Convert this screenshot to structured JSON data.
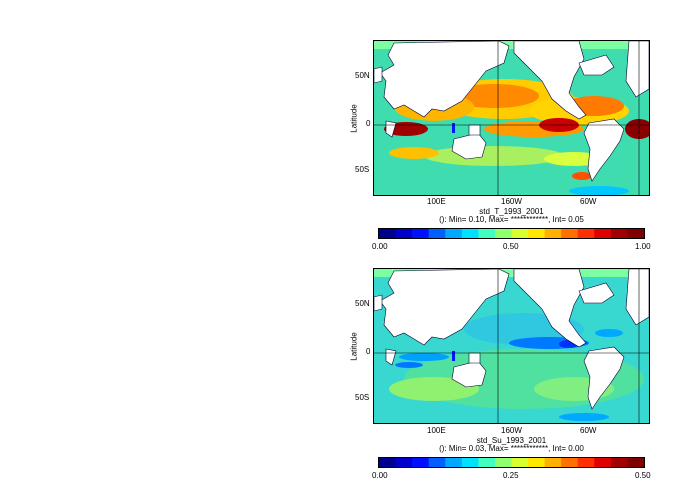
{
  "panel_top": {
    "title": "std_T_1993_2001",
    "stats": "(): Min= 0.10, Max= ************, Int= 0.05",
    "ylabel": "Latitude",
    "lat_ticks": [
      "50N",
      "0",
      "50S"
    ],
    "lon_ticks": [
      "100E",
      "160W",
      "60W"
    ],
    "colorbar_ticks": [
      "0.00",
      "0.50",
      "1.00"
    ],
    "colorbar_range": [
      0.0,
      1.0
    ]
  },
  "panel_bottom": {
    "title": "std_Su_1993_2001",
    "stats": "(): Min= 0.03, Max= ************, Int= 0.00",
    "ylabel": "Latitude",
    "lat_ticks": [
      "50N",
      "0",
      "50S"
    ],
    "lon_ticks": [
      "100E",
      "160W",
      "60W"
    ],
    "colorbar_ticks": [
      "0.00",
      "0.25",
      "0.50"
    ],
    "colorbar_range": [
      0.0,
      0.5
    ]
  },
  "colors": {
    "palette": [
      "#00008f",
      "#0000cc",
      "#0010ff",
      "#0060ff",
      "#00a8ff",
      "#00e0ff",
      "#40ffc0",
      "#90ff70",
      "#d8ff30",
      "#ffe800",
      "#ffb000",
      "#ff7000",
      "#ff3000",
      "#e00000",
      "#a00000",
      "#800000"
    ],
    "land": "#ffffff"
  }
}
